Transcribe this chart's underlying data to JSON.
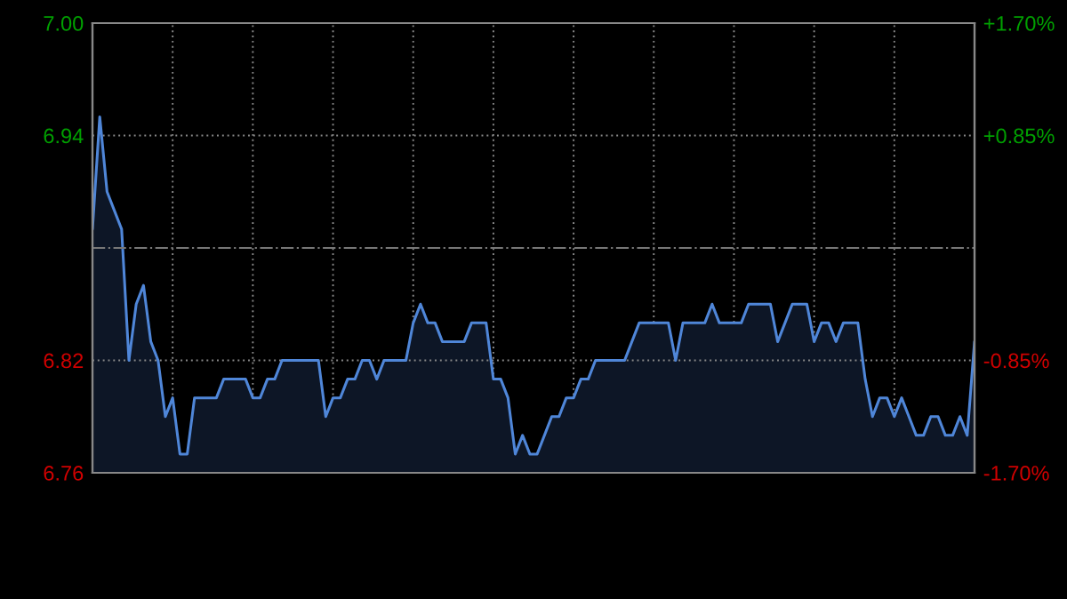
{
  "chart_data": {
    "type": "area",
    "color": "#4f86d8",
    "categories": [
      null,
      null,
      null,
      null,
      null,
      null,
      null,
      null,
      null,
      null,
      null,
      null,
      null,
      null,
      null,
      null,
      null,
      null,
      null,
      null,
      null,
      null,
      null,
      null,
      null,
      null,
      null,
      null,
      null,
      null,
      null,
      null,
      null,
      null,
      null,
      null,
      null,
      null,
      null,
      null,
      null,
      null,
      null,
      null,
      null,
      null,
      null,
      null,
      null,
      null,
      null,
      null,
      null,
      null,
      null,
      null,
      null,
      null,
      null,
      null,
      null,
      null,
      null,
      null,
      null,
      null,
      null,
      null,
      null,
      null,
      null,
      null,
      null,
      null,
      null,
      null,
      null,
      null,
      null,
      null,
      null,
      null,
      null,
      null,
      null,
      null,
      null,
      null,
      null,
      null,
      null,
      null,
      null,
      null,
      null,
      null,
      null,
      null,
      null,
      null,
      null,
      null,
      null,
      null,
      null,
      null,
      null,
      null,
      null,
      null,
      null,
      null,
      null,
      null,
      null,
      null,
      null,
      null,
      null,
      null,
      null,
      null
    ],
    "values": [
      6.89,
      6.95,
      6.91,
      6.9,
      6.89,
      6.82,
      6.85,
      6.86,
      6.83,
      6.82,
      6.79,
      6.8,
      6.77,
      6.77,
      6.8,
      6.8,
      6.8,
      6.8,
      6.81,
      6.81,
      6.81,
      6.81,
      6.8,
      6.8,
      6.81,
      6.81,
      6.82,
      6.82,
      6.82,
      6.82,
      6.82,
      6.82,
      6.79,
      6.8,
      6.8,
      6.81,
      6.81,
      6.82,
      6.82,
      6.81,
      6.82,
      6.82,
      6.82,
      6.82,
      6.84,
      6.85,
      6.84,
      6.84,
      6.83,
      6.83,
      6.83,
      6.83,
      6.84,
      6.84,
      6.84,
      6.81,
      6.81,
      6.8,
      6.77,
      6.78,
      6.77,
      6.77,
      6.78,
      6.79,
      6.79,
      6.8,
      6.8,
      6.81,
      6.81,
      6.82,
      6.82,
      6.82,
      6.82,
      6.82,
      6.83,
      6.84,
      6.84,
      6.84,
      6.84,
      6.84,
      6.82,
      6.84,
      6.84,
      6.84,
      6.84,
      6.85,
      6.84,
      6.84,
      6.84,
      6.84,
      6.85,
      6.85,
      6.85,
      6.85,
      6.83,
      6.84,
      6.85,
      6.85,
      6.85,
      6.83,
      6.84,
      6.84,
      6.83,
      6.84,
      6.84,
      6.84,
      6.81,
      6.79,
      6.8,
      6.8,
      6.79,
      6.8,
      6.79,
      6.78,
      6.78,
      6.79,
      6.79,
      6.78,
      6.78,
      6.79,
      6.78,
      6.83
    ],
    "ylim": [
      6.76,
      7.0
    ],
    "yticks": [
      {
        "value": 7.0,
        "label": "7.00"
      },
      6.94,
      6.82,
      6.76
    ],
    "y2lim": [
      -1.7,
      1.7
    ],
    "y2ticks": [
      {
        "value": 1.7,
        "label": "+1.70%"
      },
      {
        "value": 0.85,
        "label": "+0.85%"
      },
      {
        "value": -0.85,
        "label": "-0.85%"
      },
      {
        "value": -1.7,
        "label": "-1.70%"
      }
    ],
    "ref_lines": [
      {
        "axis": "y",
        "value": 6.88,
        "color": "#777777",
        "line_style": "dashdot"
      }
    ],
    "grid": true,
    "tick_labels": "y"
  }
}
